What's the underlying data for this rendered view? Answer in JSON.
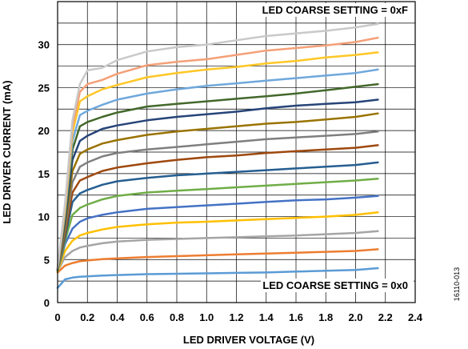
{
  "chart_data": {
    "type": "line",
    "xlabel": "LED DRIVER VOLTAGE (V)",
    "ylabel": "LED DRIVER CURRENT (mA)",
    "xlim": [
      0,
      2.4
    ],
    "ylim": [
      0,
      35
    ],
    "x_ticks": [
      "0",
      "0.2",
      "0.4",
      "0.6",
      "0.8",
      "1.0",
      "1.2",
      "1.4",
      "1.6",
      "1.8",
      "2.0",
      "2.2",
      "2.4"
    ],
    "y_ticks": [
      "0",
      "5",
      "10",
      "15",
      "20",
      "25",
      "30"
    ],
    "grid": true,
    "annotations": {
      "top": "LED COARSE SETTING = 0xF",
      "bottom": "LED COARSE SETTING = 0x0",
      "figure_id": "16110-013"
    },
    "x": [
      0.0,
      0.05,
      0.1,
      0.15,
      0.2,
      0.3,
      0.4,
      0.6,
      0.8,
      1.0,
      1.2,
      1.4,
      1.6,
      1.8,
      2.0,
      2.15
    ],
    "series": [
      {
        "color": "#5B9BD5",
        "values": [
          1.7,
          2.7,
          2.9,
          3.0,
          3.05,
          3.15,
          3.2,
          3.3,
          3.35,
          3.4,
          3.45,
          3.5,
          3.6,
          3.7,
          3.8,
          4.0
        ]
      },
      {
        "color": "#ED7D31",
        "values": [
          3.5,
          4.3,
          4.6,
          4.8,
          4.9,
          5.05,
          5.15,
          5.3,
          5.4,
          5.5,
          5.6,
          5.7,
          5.8,
          5.9,
          6.0,
          6.2
        ]
      },
      {
        "color": "#A5A5A5",
        "values": [
          3.6,
          5.3,
          6.0,
          6.4,
          6.6,
          6.9,
          7.1,
          7.3,
          7.4,
          7.5,
          7.6,
          7.7,
          7.8,
          7.95,
          8.1,
          8.3
        ]
      },
      {
        "color": "#FFC000",
        "values": [
          3.6,
          6.0,
          7.2,
          7.8,
          8.1,
          8.5,
          8.8,
          9.1,
          9.3,
          9.4,
          9.55,
          9.7,
          9.85,
          10.0,
          10.2,
          10.5
        ]
      },
      {
        "color": "#4472C4",
        "values": [
          3.7,
          6.8,
          8.6,
          9.4,
          9.8,
          10.2,
          10.5,
          10.9,
          11.1,
          11.3,
          11.5,
          11.7,
          11.9,
          12.0,
          12.2,
          12.4
        ]
      },
      {
        "color": "#70AD47",
        "values": [
          3.7,
          7.2,
          10.2,
          11.0,
          11.4,
          12.0,
          12.4,
          12.8,
          13.0,
          13.2,
          13.4,
          13.6,
          13.8,
          14.0,
          14.2,
          14.4
        ]
      },
      {
        "color": "#255E91",
        "values": [
          3.8,
          7.6,
          11.7,
          12.7,
          13.1,
          13.7,
          14.1,
          14.5,
          14.8,
          15.0,
          15.2,
          15.4,
          15.6,
          15.8,
          16.0,
          16.3
        ]
      },
      {
        "color": "#9E480E",
        "values": [
          3.8,
          8.0,
          12.8,
          14.2,
          14.6,
          15.3,
          15.7,
          16.2,
          16.6,
          16.9,
          17.1,
          17.4,
          17.6,
          17.8,
          18.0,
          18.3
        ]
      },
      {
        "color": "#7F7F7F",
        "values": [
          3.8,
          8.5,
          14.0,
          15.8,
          16.3,
          17.0,
          17.4,
          17.8,
          18.1,
          18.4,
          18.7,
          19.0,
          19.2,
          19.4,
          19.6,
          19.9
        ]
      },
      {
        "color": "#997300",
        "values": [
          3.8,
          9.0,
          15.3,
          17.3,
          17.8,
          18.5,
          18.9,
          19.5,
          19.9,
          20.2,
          20.5,
          20.8,
          21.0,
          21.3,
          21.6,
          22.0
        ]
      },
      {
        "color": "#264478",
        "values": [
          3.9,
          9.5,
          16.6,
          18.8,
          19.4,
          20.2,
          20.6,
          21.2,
          21.6,
          21.9,
          22.2,
          22.6,
          22.9,
          23.1,
          23.3,
          23.6
        ]
      },
      {
        "color": "#43682B",
        "values": [
          3.9,
          10.0,
          17.8,
          20.5,
          21.0,
          21.6,
          22.1,
          22.8,
          23.1,
          23.4,
          23.7,
          24.0,
          24.3,
          24.7,
          25.1,
          25.4
        ]
      },
      {
        "color": "#6FA8DC",
        "values": [
          3.9,
          10.4,
          18.8,
          21.8,
          22.3,
          23.0,
          23.6,
          24.3,
          24.8,
          25.2,
          25.5,
          25.8,
          26.1,
          26.4,
          26.7,
          27.1
        ]
      },
      {
        "color": "#FFC726",
        "values": [
          4.0,
          10.8,
          19.8,
          23.4,
          24.0,
          24.8,
          25.3,
          26.2,
          26.7,
          27.1,
          27.4,
          27.8,
          28.1,
          28.5,
          28.8,
          29.1
        ]
      },
      {
        "color": "#F4A078",
        "values": [
          4.0,
          11.2,
          20.5,
          24.5,
          25.4,
          25.9,
          26.6,
          27.6,
          28.0,
          28.3,
          28.8,
          29.3,
          29.6,
          29.9,
          30.3,
          30.8
        ]
      },
      {
        "color": "#C9C9C9",
        "values": [
          4.0,
          11.6,
          21.2,
          25.4,
          27.0,
          27.3,
          28.2,
          29.2,
          29.7,
          30.0,
          30.5,
          31.0,
          31.3,
          31.6,
          32.0,
          32.4
        ]
      }
    ]
  }
}
